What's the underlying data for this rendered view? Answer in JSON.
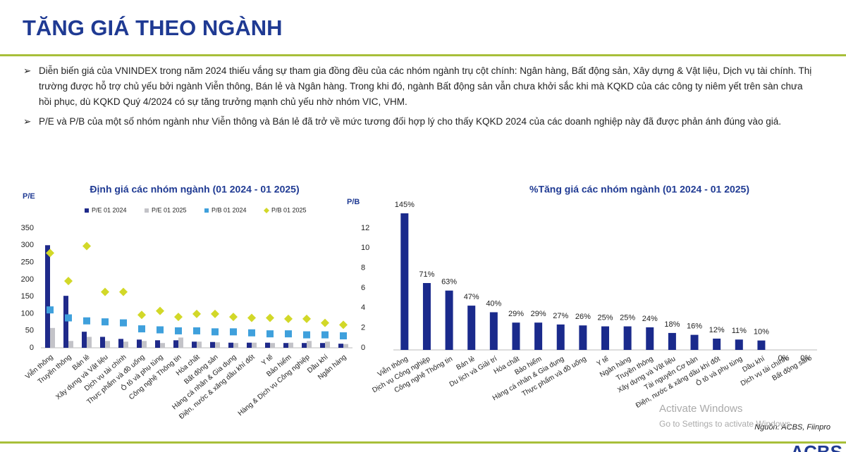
{
  "header": {
    "title": "TĂNG GIÁ THEO NGÀNH"
  },
  "bullets": [
    "Diễn biến giá của VNINDEX trong  năm 2024 thiếu vắng sự tham gia đồng đều của các nhóm ngành trụ cột chính: Ngân hàng, Bất động sản, Xây dựng & Vật liệu, Dịch vụ tài chính.  Thị trường được hỗ trợ chủ yếu bởi ngành Viễn thông, Bán lẻ và Ngân hàng. Trong khi đó, ngành Bất động sản vẫn chưa khởi sắc khi mà KQKD của các công ty niêm yết trên sàn chưa hồi phục, dù KQKD Quý 4/2024 có sự tăng trưởng mạnh chủ yếu nhờ nhóm VIC, VHM.",
    "P/E và P/B của một số nhóm ngành như Viễn thông và Bán lẻ đã trở về mức tương đối hợp lý cho thấy KQKD 2024 của các doanh nghiệp này đã được phản ánh đúng vào giá."
  ],
  "chart_data": [
    {
      "type": "combo",
      "title": "Định giá các nhóm ngành (01 2024 - 01 2025)",
      "y_label": "P/E",
      "y2_label": "P/B",
      "categories": [
        "Viễn thông",
        "Truyền thông",
        "Bán lẻ",
        "Xây dựng và Vật liệu",
        "Dịch vụ tài chính",
        "Thực phẩm và đồ uống",
        "Ô tô và phụ tùng",
        "Công nghệ Thông tin",
        "Hóa chất",
        "Bất động sản",
        "Hàng cá nhân & Gia dụng",
        "Điện, nước & xăng dầu khí đốt",
        "Y tế",
        "Bảo hiểm",
        "Hàng & Dịch vụ Công nghiệp",
        "Dầu khí",
        "Ngân hàng"
      ],
      "series": [
        {
          "name": "P/E 01 2024",
          "style": "bar",
          "color": "#1f2a8a",
          "values": [
            300,
            152,
            47,
            32,
            26,
            24,
            22,
            22,
            18,
            17,
            15,
            15,
            15,
            14,
            14,
            14,
            12
          ]
        },
        {
          "name": "P/E 01 2025",
          "style": "bar",
          "color": "#c3c3c8",
          "values": [
            58,
            20,
            32,
            20,
            18,
            20,
            14,
            30,
            18,
            16,
            14,
            15,
            14,
            15,
            20,
            18,
            11
          ]
        },
        {
          "name": "P/B 01 2024",
          "style": "square",
          "axis": "y2",
          "color": "#3fa0dc",
          "values": [
            3.8,
            3.0,
            2.7,
            2.6,
            2.5,
            1.9,
            1.8,
            1.7,
            1.7,
            1.6,
            1.6,
            1.5,
            1.4,
            1.4,
            1.3,
            1.3,
            1.2
          ]
        },
        {
          "name": "P/B 01 2025",
          "style": "diamond",
          "axis": "y2",
          "color": "#d2d828",
          "values": [
            9.5,
            6.7,
            10.2,
            5.6,
            5.6,
            3.3,
            3.7,
            3.1,
            3.4,
            3.4,
            3.1,
            3.0,
            3.0,
            2.9,
            2.9,
            2.5,
            2.3
          ]
        }
      ],
      "ylim": [
        0,
        350
      ],
      "yticks": [
        0,
        50,
        100,
        150,
        200,
        250,
        300,
        350
      ],
      "y2lim": [
        0,
        12
      ],
      "y2ticks": [
        0,
        2,
        4,
        6,
        8,
        10,
        12
      ]
    },
    {
      "type": "bar",
      "title": "%Tăng giá các nhóm ngành (01 2024 - 01 2025)",
      "color": "#1a2a8c",
      "categories": [
        "Viễn thông",
        "Dịch vụ Công nghiệp",
        "Công nghệ Thông tin",
        "Bán lẻ",
        "Du lịch và Giải trí",
        "Hóa chất",
        "Bảo hiểm",
        "Hàng cá nhân & Gia dụng",
        "Thực phẩm và đồ uống",
        "Y tế",
        "Ngân hàng",
        "Truyền thông",
        "Xây dựng và Vật liệu",
        "Tài nguyên Cơ bản",
        "Điện, nước & xăng dầu khí đốt",
        "Ô tô và phụ tùng",
        "Dầu khí",
        "Dịch vụ tài chính",
        "Bất động sản"
      ],
      "values": [
        145,
        71,
        63,
        47,
        40,
        29,
        29,
        27,
        26,
        25,
        25,
        24,
        18,
        16,
        12,
        11,
        10,
        0,
        0
      ],
      "value_labels": [
        "145%",
        "71%",
        "63%",
        "47%",
        "40%",
        "29%",
        "29%",
        "27%",
        "26%",
        "25%",
        "25%",
        "24%",
        "18%",
        "16%",
        "12%",
        "11%",
        "10%",
        "0%",
        "0%"
      ]
    }
  ],
  "source": "Nguồn: ACBS, Fiinpro",
  "watermark": [
    "Activate Windows",
    "Go to Settings to activate Windows"
  ],
  "logo": "ACBS"
}
